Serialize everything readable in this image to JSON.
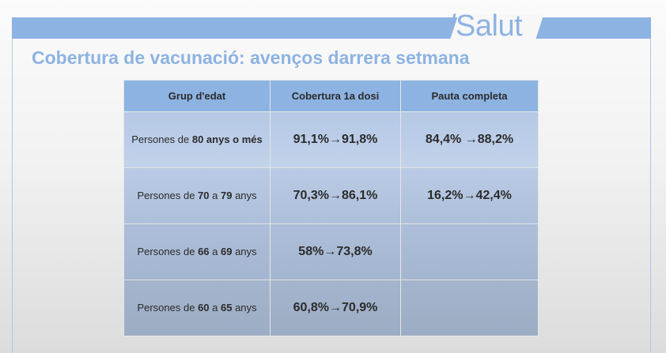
{
  "header": {
    "logo_text": "/Salut",
    "accent_color": "#8db3e2"
  },
  "slide": {
    "title": "Cobertura de vacunació: avenços darrera setmana"
  },
  "table": {
    "columns": [
      "Grup d'edat",
      "Cobertura 1a dosi",
      "Pauta completa"
    ],
    "rows": [
      {
        "group_prefix": "Persones de ",
        "group_bold_1": "80 anys o més",
        "group_mid": "",
        "group_bold_2": "",
        "group_suffix": "",
        "first_dose": "91,1%→91,8%",
        "complete": "84,4% →88,2%"
      },
      {
        "group_prefix": "Persones de ",
        "group_bold_1": "70",
        "group_mid": " a ",
        "group_bold_2": "79",
        "group_suffix": " anys",
        "first_dose": "70,3%→86,1%",
        "complete": "16,2%→42,4%"
      },
      {
        "group_prefix": "Persones de ",
        "group_bold_1": "66",
        "group_mid": " a ",
        "group_bold_2": "69",
        "group_suffix": " anys",
        "first_dose": "58%→73,8%",
        "complete": ""
      },
      {
        "group_prefix": "Persones de ",
        "group_bold_1": "60",
        "group_mid": " a ",
        "group_bold_2": "65",
        "group_suffix": " anys",
        "first_dose": "60,8%→70,9%",
        "complete": ""
      }
    ]
  }
}
